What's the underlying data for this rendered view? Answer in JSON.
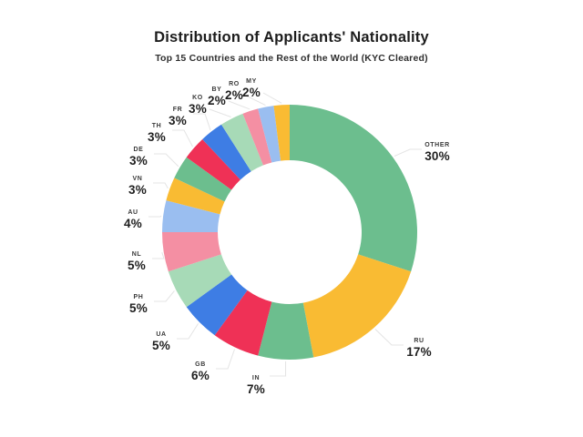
{
  "header": {
    "title": "Distribution of Applicants' Nationality",
    "subtitle": "Top 15 Countries and the Rest of the World (KYC Cleared)"
  },
  "chart_data": {
    "type": "pie",
    "variant": "donut",
    "title": "Distribution of Applicants' Nationality",
    "subtitle": "Top 15 Countries and the Rest of the World (KYC Cleared)",
    "unit": "percent",
    "start_angle_deg": 0,
    "direction": "clockwise",
    "legend_position": "none",
    "labels_outside": true,
    "total_pct": 100,
    "slices": [
      {
        "code": "OTHER",
        "pct": 30,
        "pct_label": "30%",
        "color": "#6CBE8E"
      },
      {
        "code": "RU",
        "pct": 17,
        "pct_label": "17%",
        "color": "#F9BB33"
      },
      {
        "code": "IN",
        "pct": 7,
        "pct_label": "7%",
        "color": "#6CBE8E"
      },
      {
        "code": "GB",
        "pct": 6,
        "pct_label": "6%",
        "color": "#EF3156"
      },
      {
        "code": "UA",
        "pct": 5,
        "pct_label": "5%",
        "color": "#3E7DE4"
      },
      {
        "code": "PH",
        "pct": 5,
        "pct_label": "5%",
        "color": "#A7DAB7"
      },
      {
        "code": "NL",
        "pct": 5,
        "pct_label": "5%",
        "color": "#F48FA3"
      },
      {
        "code": "AU",
        "pct": 4,
        "pct_label": "4%",
        "color": "#9ABEF0"
      },
      {
        "code": "VN",
        "pct": 3,
        "pct_label": "3%",
        "color": "#F9BB33"
      },
      {
        "code": "DE",
        "pct": 3,
        "pct_label": "3%",
        "color": "#6CBE8E"
      },
      {
        "code": "TH",
        "pct": 3,
        "pct_label": "3%",
        "color": "#EF3156"
      },
      {
        "code": "FR",
        "pct": 3,
        "pct_label": "3%",
        "color": "#3E7DE4"
      },
      {
        "code": "KO",
        "pct": 3,
        "pct_label": "3%",
        "color": "#A7DAB7"
      },
      {
        "code": "BY",
        "pct": 2,
        "pct_label": "2%",
        "color": "#F48FA3"
      },
      {
        "code": "RO",
        "pct": 2,
        "pct_label": "2%",
        "color": "#9ABEF0"
      },
      {
        "code": "MY",
        "pct": 2,
        "pct_label": "2%",
        "color": "#F9BB33"
      }
    ]
  },
  "colors": {
    "background": "#ffffff",
    "hole": "#ffffff",
    "leader_line": "#e4e4e4",
    "label_code": "#3a3a3a",
    "label_value": "#1f1f1f",
    "title": "#1c1c1c"
  }
}
